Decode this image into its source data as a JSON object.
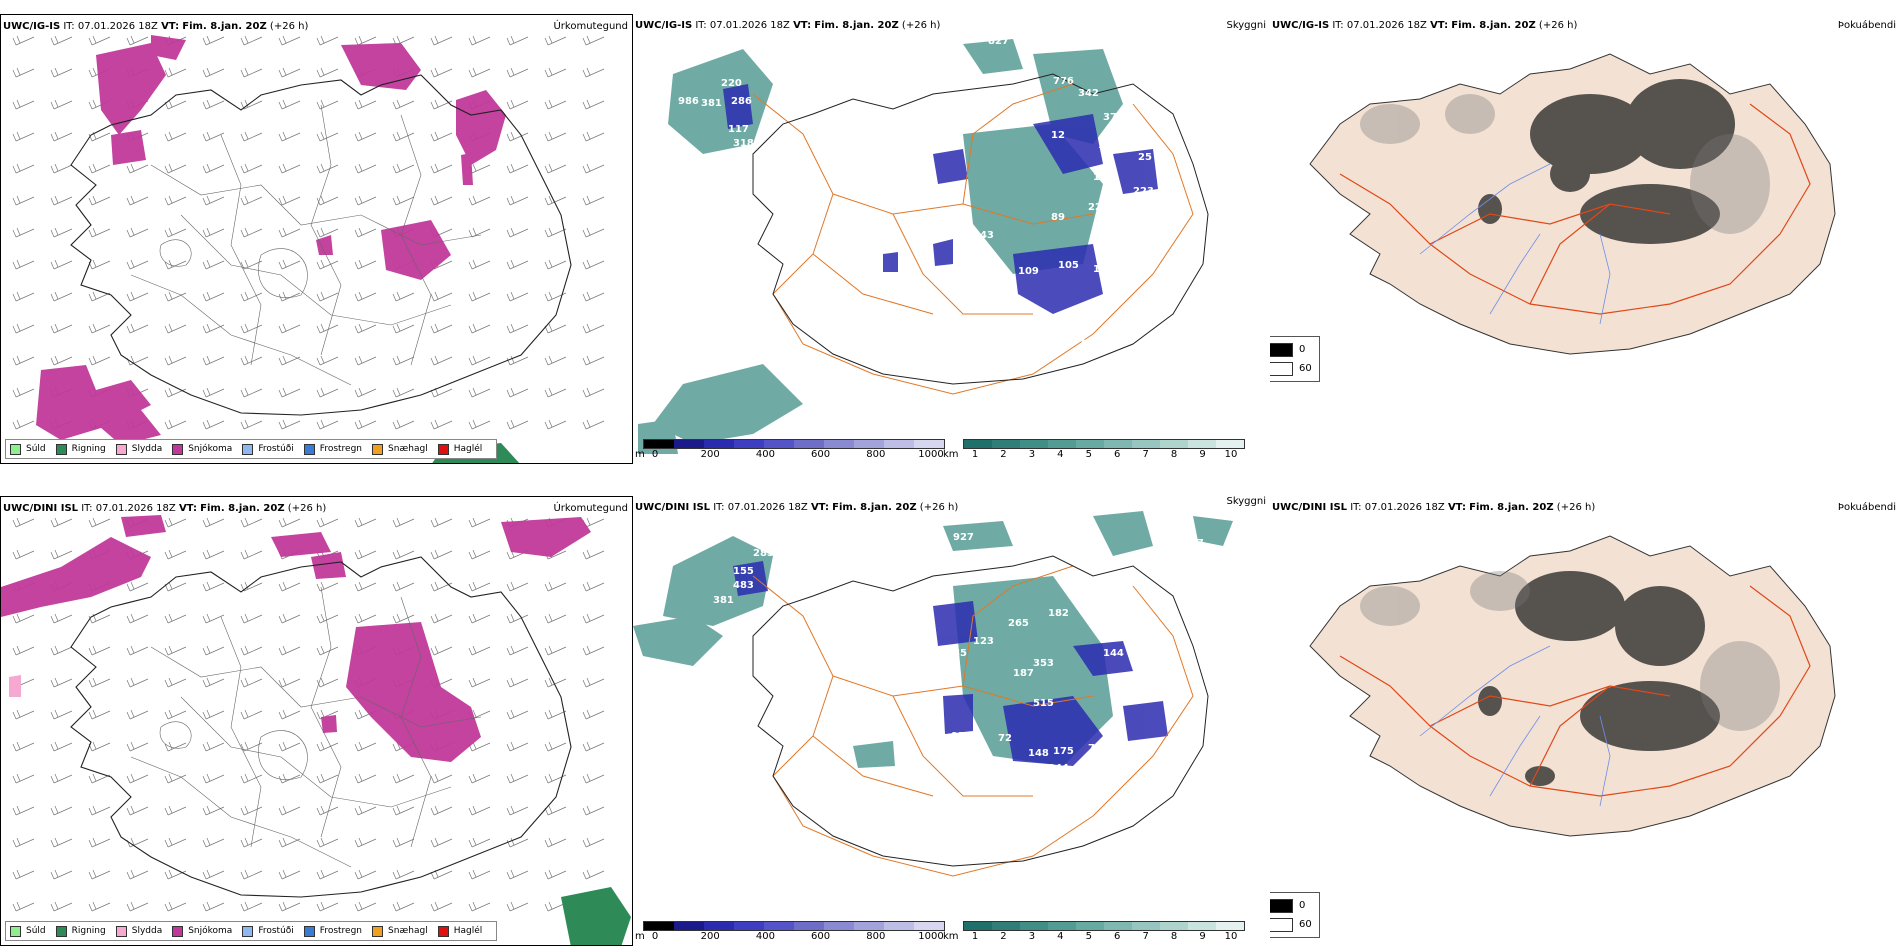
{
  "rows": [
    {
      "id": "top",
      "model": "UWC/IG-IS",
      "it_label": "IT:",
      "it_value": "07.01.2026 18Z",
      "vt_label": "VT:",
      "vt_value": "Fim. 8.jan. 20Z",
      "lead": "(+26 h)",
      "precip_title": "Úrkomutegund",
      "cloud_title": "Skyggni",
      "fog_title": "Þokuábendi"
    },
    {
      "id": "bottom",
      "model": "UWC/DINI ISL",
      "it_label": "IT:",
      "it_value": "07.01.2026 18Z",
      "vt_label": "VT:",
      "vt_value": "Fim. 8.jan. 20Z",
      "lead": "(+26 h)",
      "precip_title": "Úrkomutegund",
      "cloud_title": "Skyggni",
      "fog_title": "Þokuábendi"
    }
  ],
  "precip_legend": [
    {
      "label": "Súld",
      "color": "#90ee90"
    },
    {
      "label": "Rigning",
      "color": "#2e8b57"
    },
    {
      "label": "Slydda",
      "color": "#f5a9d0"
    },
    {
      "label": "Snjókoma",
      "color": "#c0399a"
    },
    {
      "label": "Frostúði",
      "color": "#8fb8ee"
    },
    {
      "label": "Frostregn",
      "color": "#3a7bd5"
    },
    {
      "label": "Snæhagl",
      "color": "#f0a020"
    },
    {
      "label": "Haglél",
      "color": "#e01010"
    }
  ],
  "cloud_base_bar": {
    "unit": "m",
    "ticks": [
      "0",
      "200",
      "400",
      "600",
      "800",
      "1000"
    ],
    "colors": [
      "#000000",
      "#1a1a8a",
      "#2b2bb0",
      "#3e3ec2",
      "#5454c8",
      "#6e6ec9",
      "#8a8ad2",
      "#a3a3dc",
      "#bdbde6",
      "#d6d6f0"
    ]
  },
  "visibility_bar": {
    "unit": "km",
    "ticks": [
      "1",
      "2",
      "3",
      "4",
      "5",
      "6",
      "7",
      "8",
      "9",
      "10"
    ],
    "colors": [
      "#1f6f6a",
      "#2f7f78",
      "#3f8f86",
      "#529c93",
      "#67aaa1",
      "#7eb8b0",
      "#96c6bf",
      "#afd4ce",
      "#c9e3de",
      "#e4f1ef"
    ]
  },
  "fog_legend": {
    "dark_label": "0",
    "light_label": "60"
  },
  "cloud_labels_top": [
    "827",
    "776",
    "342",
    "986",
    "220",
    "381",
    "286",
    "117",
    "318",
    "377",
    "12",
    "124",
    "152",
    "223",
    "25",
    "89",
    "227",
    "98",
    "17",
    "343",
    "109",
    "105",
    "159",
    "107",
    "84"
  ],
  "cloud_labels_bottom": [
    "285",
    "155",
    "103",
    "381",
    "483",
    "927",
    "987",
    "265",
    "182",
    "123",
    "353",
    "187",
    "85",
    "144",
    "95",
    "515",
    "72",
    "148",
    "175",
    "76",
    "344"
  ],
  "colors": {
    "snow": "#c0399a",
    "rain": "#2e8b57",
    "cloud_teal": "#3f8f86",
    "cloud_blue": "#2b2bb0",
    "road": "#e07828",
    "fog_land": "#f3e2d4",
    "fog_road": "#e04818",
    "river": "#6f8fe8"
  }
}
